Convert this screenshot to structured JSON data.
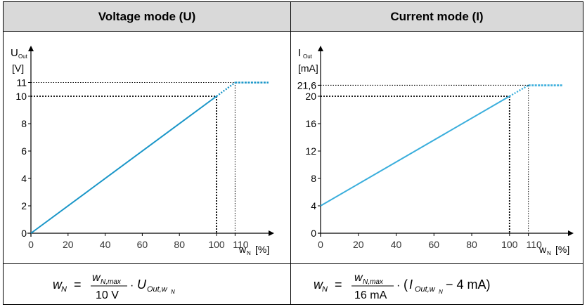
{
  "voltage": {
    "title": "Voltage mode (U)",
    "y_label_main": "U",
    "y_label_sub": "Out",
    "y_unit": "[V]",
    "x_label_main": "w",
    "x_label_sub": "N",
    "x_unit": "[%]",
    "line_color": "#1a96c8",
    "formula": {
      "lhs": "w",
      "lhs_sub": "N",
      "num": "w",
      "num_sub": "N,max",
      "den": "10 V",
      "term": "U",
      "term_sub": "Out,w",
      "term_subsub": "N"
    }
  },
  "current": {
    "title": "Current mode (I)",
    "y_label_main": "I",
    "y_label_sub": "Out",
    "y_unit": "[mA]",
    "x_label_main": "w",
    "x_label_sub": "N",
    "x_unit": "[%]",
    "line_color": "#3aaedc",
    "formula": {
      "lhs": "w",
      "lhs_sub": "N",
      "num": "w",
      "num_sub": "N,max",
      "den": "16 mA",
      "paren_open": "(",
      "term": "I",
      "term_sub": "Out,w",
      "term_subsub": "N",
      "tail": " − 4 mA)"
    }
  },
  "chart_data": [
    {
      "type": "line",
      "title": "Voltage mode (U)",
      "x_ticks": [
        "0",
        "20",
        "40",
        "60",
        "80",
        "100",
        "110"
      ],
      "y_ticks": [
        "0",
        "2",
        "4",
        "6",
        "8",
        "10",
        "11"
      ],
      "xlim": [
        0,
        125
      ],
      "ylim": [
        0,
        11
      ],
      "series": [
        {
          "x": [
            0,
            100,
            110,
            128
          ],
          "y": [
            0,
            10,
            11,
            11
          ]
        }
      ],
      "markers": [
        {
          "x": 100,
          "y": 10
        },
        {
          "x": 110,
          "y": 11
        }
      ]
    },
    {
      "type": "line",
      "title": "Current mode (I)",
      "x_ticks": [
        "0",
        "20",
        "40",
        "60",
        "80",
        "100",
        "110"
      ],
      "y_ticks": [
        "0",
        "4",
        "8",
        "12",
        "16",
        "20",
        "21,6"
      ],
      "xlim": [
        0,
        125
      ],
      "ylim": [
        0,
        21.6
      ],
      "series": [
        {
          "x": [
            0,
            100,
            110,
            128
          ],
          "y": [
            4,
            20,
            21.6,
            21.6
          ]
        }
      ],
      "markers": [
        {
          "x": 100,
          "y": 20
        },
        {
          "x": 110,
          "y": 21.6
        }
      ]
    }
  ]
}
